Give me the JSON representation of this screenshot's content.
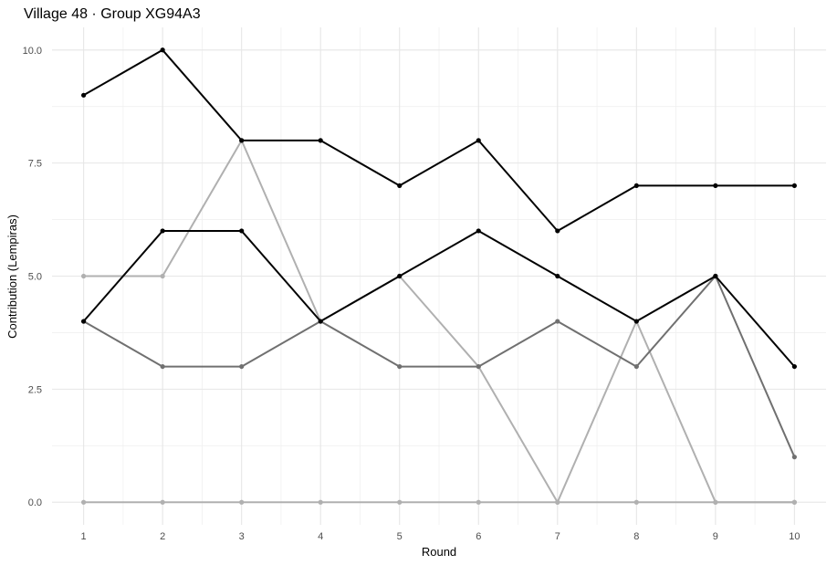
{
  "chart_data": {
    "type": "line",
    "title": "Village 48 · Group XG94A3",
    "xlabel": "Round",
    "ylabel": "Contribution (Lempiras)",
    "x": [
      1,
      2,
      3,
      4,
      5,
      6,
      7,
      8,
      9,
      10
    ],
    "xlim": [
      0.6,
      10.4
    ],
    "ylim": [
      -0.5,
      10.5
    ],
    "y_ticks": [
      0.0,
      2.5,
      5.0,
      7.5,
      10.0
    ],
    "y_tick_labels": [
      "0.0",
      "2.5",
      "5.0",
      "7.5",
      "10.0"
    ],
    "x_tick_labels": [
      "1",
      "2",
      "3",
      "4",
      "5",
      "6",
      "7",
      "8",
      "9",
      "10"
    ],
    "grid": true,
    "legend": "none",
    "series": [
      {
        "color": "#000000",
        "values": [
          9,
          10,
          8,
          8,
          7,
          8,
          6,
          7,
          7,
          7
        ]
      },
      {
        "color": "#000000",
        "values": [
          4,
          6,
          6,
          4,
          5,
          6,
          5,
          4,
          5,
          3
        ]
      },
      {
        "color": "#707070",
        "values": [
          4,
          3,
          3,
          4,
          3,
          3,
          4,
          3,
          5,
          1
        ]
      },
      {
        "color": "#b0b0b0",
        "values": [
          5,
          5,
          8,
          4,
          5,
          3,
          0,
          4,
          0,
          0
        ]
      },
      {
        "color": "#b0b0b0",
        "values": [
          0,
          0,
          0,
          0,
          0,
          0,
          0,
          0,
          0,
          0
        ]
      }
    ]
  }
}
